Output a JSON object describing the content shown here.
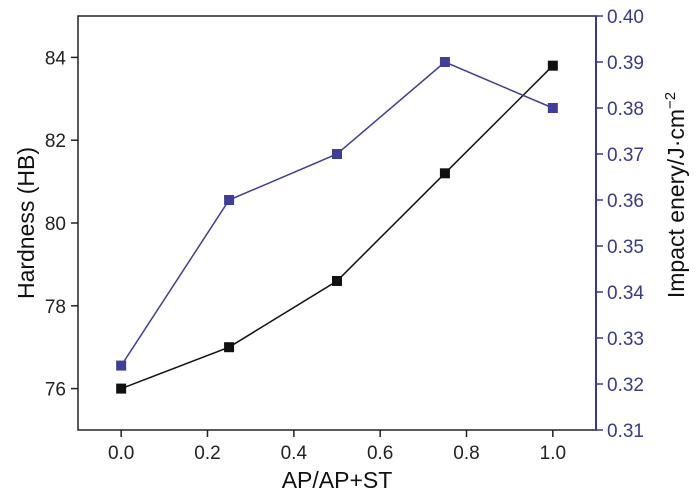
{
  "chart_data": {
    "type": "line",
    "xlabel": "AP/AP+ST",
    "ylabel_left": "Hardness (HB)",
    "ylabel_right": "Impact enery/J·cm",
    "ylabel_right_exponent": "−2",
    "xlim": [
      -0.1,
      1.1
    ],
    "ylim_left": [
      75,
      85
    ],
    "ylim_right": [
      0.31,
      0.4
    ],
    "x_ticks": [
      "0.0",
      "0.2",
      "0.4",
      "0.6",
      "0.8",
      "1.0"
    ],
    "y_left_ticks": [
      "76",
      "78",
      "80",
      "82",
      "84"
    ],
    "y_right_ticks": [
      "0.31",
      "0.32",
      "0.33",
      "0.34",
      "0.35",
      "0.36",
      "0.37",
      "0.38",
      "0.39",
      "0.40"
    ],
    "grid": false,
    "series": [
      {
        "axis": "left",
        "color": "#111111",
        "marker": "square",
        "x": [
          0.0,
          0.25,
          0.5,
          0.75,
          1.0
        ],
        "y": [
          76.0,
          77.0,
          78.6,
          81.2,
          83.8
        ]
      },
      {
        "axis": "right",
        "color": "#3f3f9a",
        "marker": "square",
        "x": [
          0.0,
          0.25,
          0.5,
          0.75,
          1.0
        ],
        "y": [
          0.324,
          0.36,
          0.37,
          0.39,
          0.38
        ]
      }
    ]
  }
}
